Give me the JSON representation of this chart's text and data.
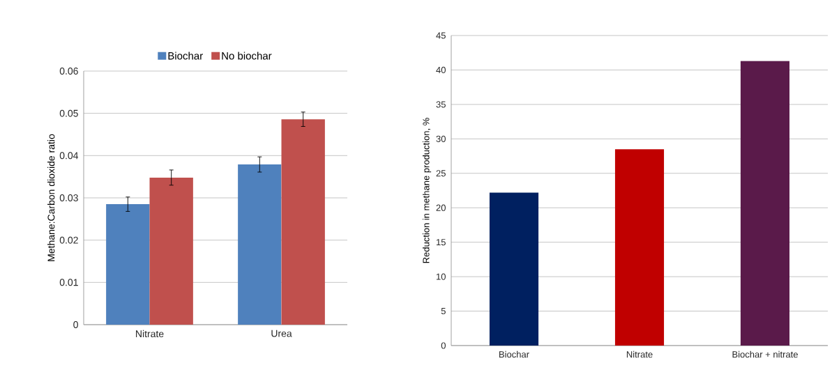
{
  "chart_data": [
    {
      "type": "bar",
      "categories": [
        "Nitrate",
        "Urea"
      ],
      "ylabel": "Methane:Carbon dioxide ratio",
      "series": [
        {
          "name": "Biochar",
          "color": "#4f81bd",
          "values": [
            0.0285,
            0.0379
          ],
          "errors": [
            0.0017,
            0.0018
          ]
        },
        {
          "name": "No biochar",
          "color": "#c0504d",
          "values": [
            0.0348,
            0.0486
          ],
          "errors": [
            0.0018,
            0.0017
          ]
        }
      ],
      "ylim": [
        0,
        0.06
      ],
      "yticks": [
        0,
        0.01,
        0.02,
        0.03,
        0.04,
        0.05,
        0.06
      ],
      "grid": "y",
      "legend": "top"
    },
    {
      "type": "bar",
      "categories": [
        "Biochar",
        "Nitrate",
        "Biochar + nitrate"
      ],
      "ylabel": "Reduction in methane production, %",
      "values": [
        22.2,
        28.5,
        41.3
      ],
      "colors": [
        "#002060",
        "#c00000",
        "#5a1a4a"
      ],
      "ylim": [
        0,
        45
      ],
      "yticks": [
        0,
        5,
        10,
        15,
        20,
        25,
        30,
        35,
        40,
        45
      ],
      "grid": "y"
    }
  ]
}
